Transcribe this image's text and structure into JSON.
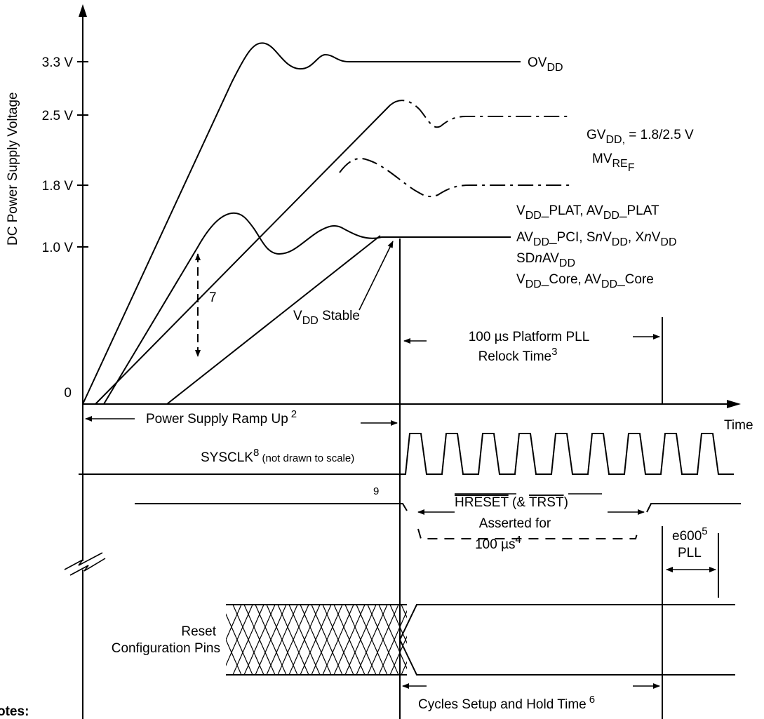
{
  "axis": {
    "ylabel": "DC Power Supply Voltage",
    "xlabel": "Time",
    "ticks": [
      "3.3 V",
      "2.5 V",
      "1.8 V",
      "1.0 V",
      "0"
    ]
  },
  "curves": {
    "ovdd": {
      "main": "OV",
      "sub": "DD"
    },
    "gvdd": {
      "main": "GV",
      "sub": "DD,",
      "rest": " = 1.8/2.5 V"
    },
    "mvref": {
      "main": "MV",
      "sub": "RE",
      "subsub": "F"
    },
    "vdd_plat": {
      "a": "V",
      "a_sub": "DD",
      "b": "_PLAT, AV",
      "b_sub": "DD",
      "c": "_PLAT"
    },
    "avdd_pci": {
      "a": "AV",
      "a_sub": "DD",
      "b": "_PCI, S",
      "b_it": "n",
      "c": "V",
      "c_sub": "DD",
      "d": ", X",
      "d_it": "n",
      "e": "V",
      "e_sub": "DD"
    },
    "sdnavdd": {
      "a": "SD",
      "a_it": "n",
      "b": "AV",
      "b_sub": "DD"
    },
    "vdd_core": {
      "a": "V",
      "a_sub": "DD",
      "b": "_Core, AV",
      "b_sub": "DD",
      "c": "_Core"
    }
  },
  "annotations": {
    "vdd_stable": {
      "a": "V",
      "a_sub": "DD",
      "b": " Stable"
    },
    "seven": "7",
    "pll_relock_line1": "100 µs Platform PLL",
    "pll_relock_line2": "Relock Time",
    "pll_relock_sup": "3",
    "ramp_up": "Power Supply Ramp Up",
    "ramp_up_sup": "2",
    "sysclk": "SYSCLK",
    "sysclk_sup": "8",
    "sysclk_note": " (not drawn to scale)",
    "nine": "9",
    "hreset": "HRESET",
    "hreset_mid": " (& ",
    "trst": "TRST",
    "hreset_end": ")",
    "asserted": "Asserted for",
    "duration": "100 µs",
    "duration_sup": "4",
    "e600": "e600",
    "e600_sup": "5",
    "pll": "PLL",
    "reset_line1": "Reset",
    "reset_line2": "Configuration Pins",
    "cycles": "Cycles Setup and Hold Time",
    "cycles_sup": "6",
    "notes": "otes:"
  }
}
